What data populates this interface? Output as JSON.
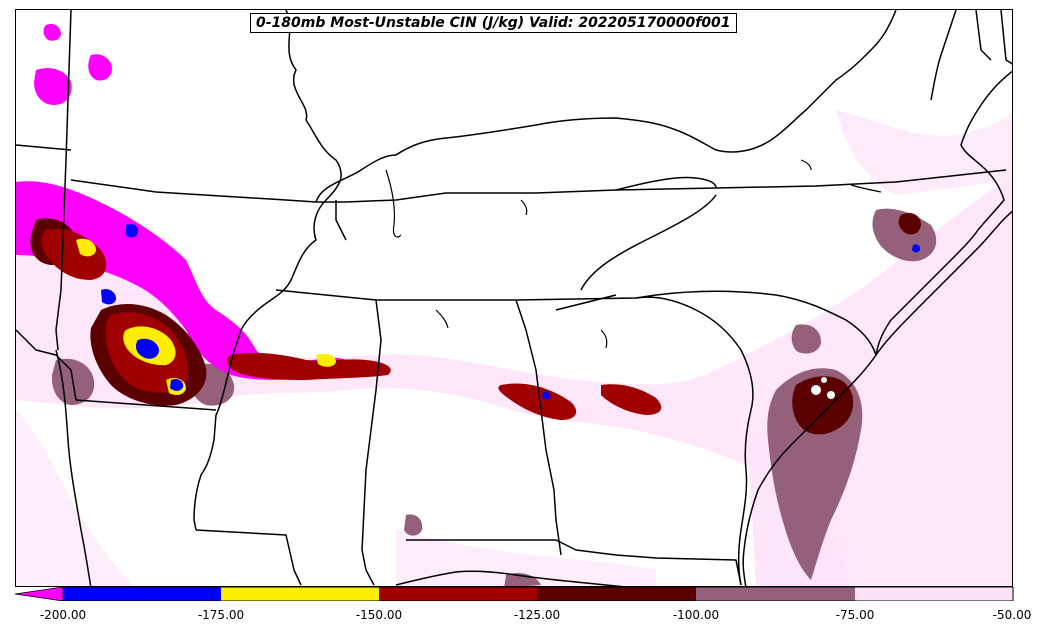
{
  "title": "0-180mb Most-Unstable CIN (J/kg) Valid: 202205170000f001",
  "colorbar": {
    "ticks": [
      "-200.00",
      "-175.00",
      "-150.00",
      "-125.00",
      "-100.00",
      "-75.00",
      "-50.00"
    ],
    "bins": [
      {
        "range": "< -200",
        "color": "#ff00ff"
      },
      {
        "range": "-200 to -175",
        "color": "#0000ff"
      },
      {
        "range": "-175 to -150",
        "color": "#ffee00"
      },
      {
        "range": "-150 to -125",
        "color": "#a00000"
      },
      {
        "range": "-125 to -100",
        "color": "#5a0000"
      },
      {
        "range": "-100 to -75",
        "color": "#956079"
      },
      {
        "range": "-75 to -50",
        "color": "#fde3f8"
      }
    ]
  },
  "colors": {
    "background": "#ffffff",
    "boundaries": "#000000"
  }
}
